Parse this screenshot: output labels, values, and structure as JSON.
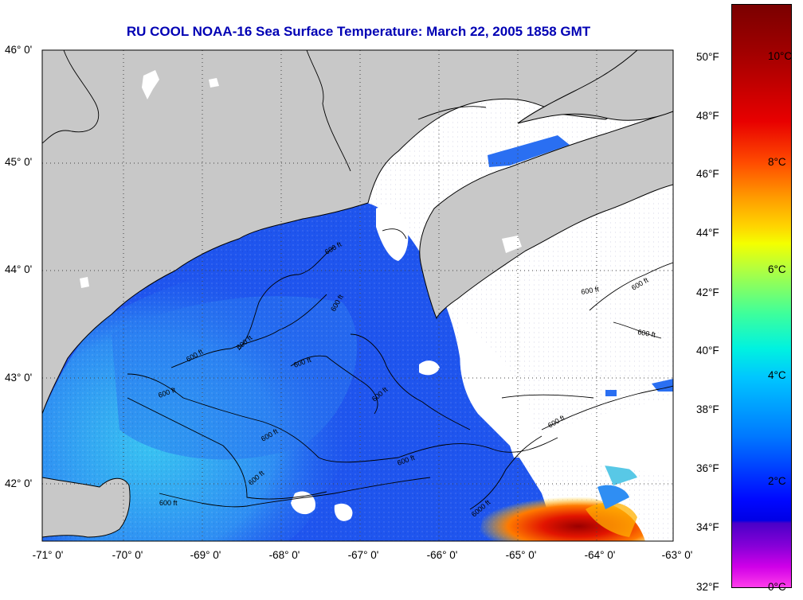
{
  "title": "RU COOL  NOAA-16  Sea Surface Temperature:  March 22, 2005 1858 GMT",
  "latitude_ticks": [
    "46° 0'",
    "45° 0'",
    "44° 0'",
    "43° 0'",
    "42° 0'"
  ],
  "longitude_ticks": [
    "-71° 0'",
    "-70° 0'",
    "-69° 0'",
    "-68° 0'",
    "-67° 0'",
    "-66° 0'",
    "-65° 0'",
    "-64° 0'",
    "-63° 0'"
  ],
  "colorbar": {
    "fahrenheit": [
      "50°F",
      "48°F",
      "46°F",
      "44°F",
      "42°F",
      "40°F",
      "38°F",
      "36°F",
      "34°F",
      "32°F"
    ],
    "celsius": [
      "10°C",
      "8°C",
      "6°C",
      "4°C",
      "2°C",
      "0°C"
    ]
  },
  "isobath_labels": [
    "600 ft",
    "600 ft",
    "600 ft",
    "600 ft",
    "600 ft",
    "600 ft",
    "600 ft",
    "600 ft",
    "600 ft",
    "600 ft",
    "600 ft",
    "600 ft",
    "600 ft",
    "600 ft",
    "600 ft",
    "6000 ft"
  ],
  "colors": {
    "land": "#c8c8c8",
    "cloud": "#ffffff",
    "cold_water": "#1f55ee",
    "cool_water": "#2f9bf0",
    "warm_water": "#ff3a00",
    "title": "#0000b4"
  }
}
